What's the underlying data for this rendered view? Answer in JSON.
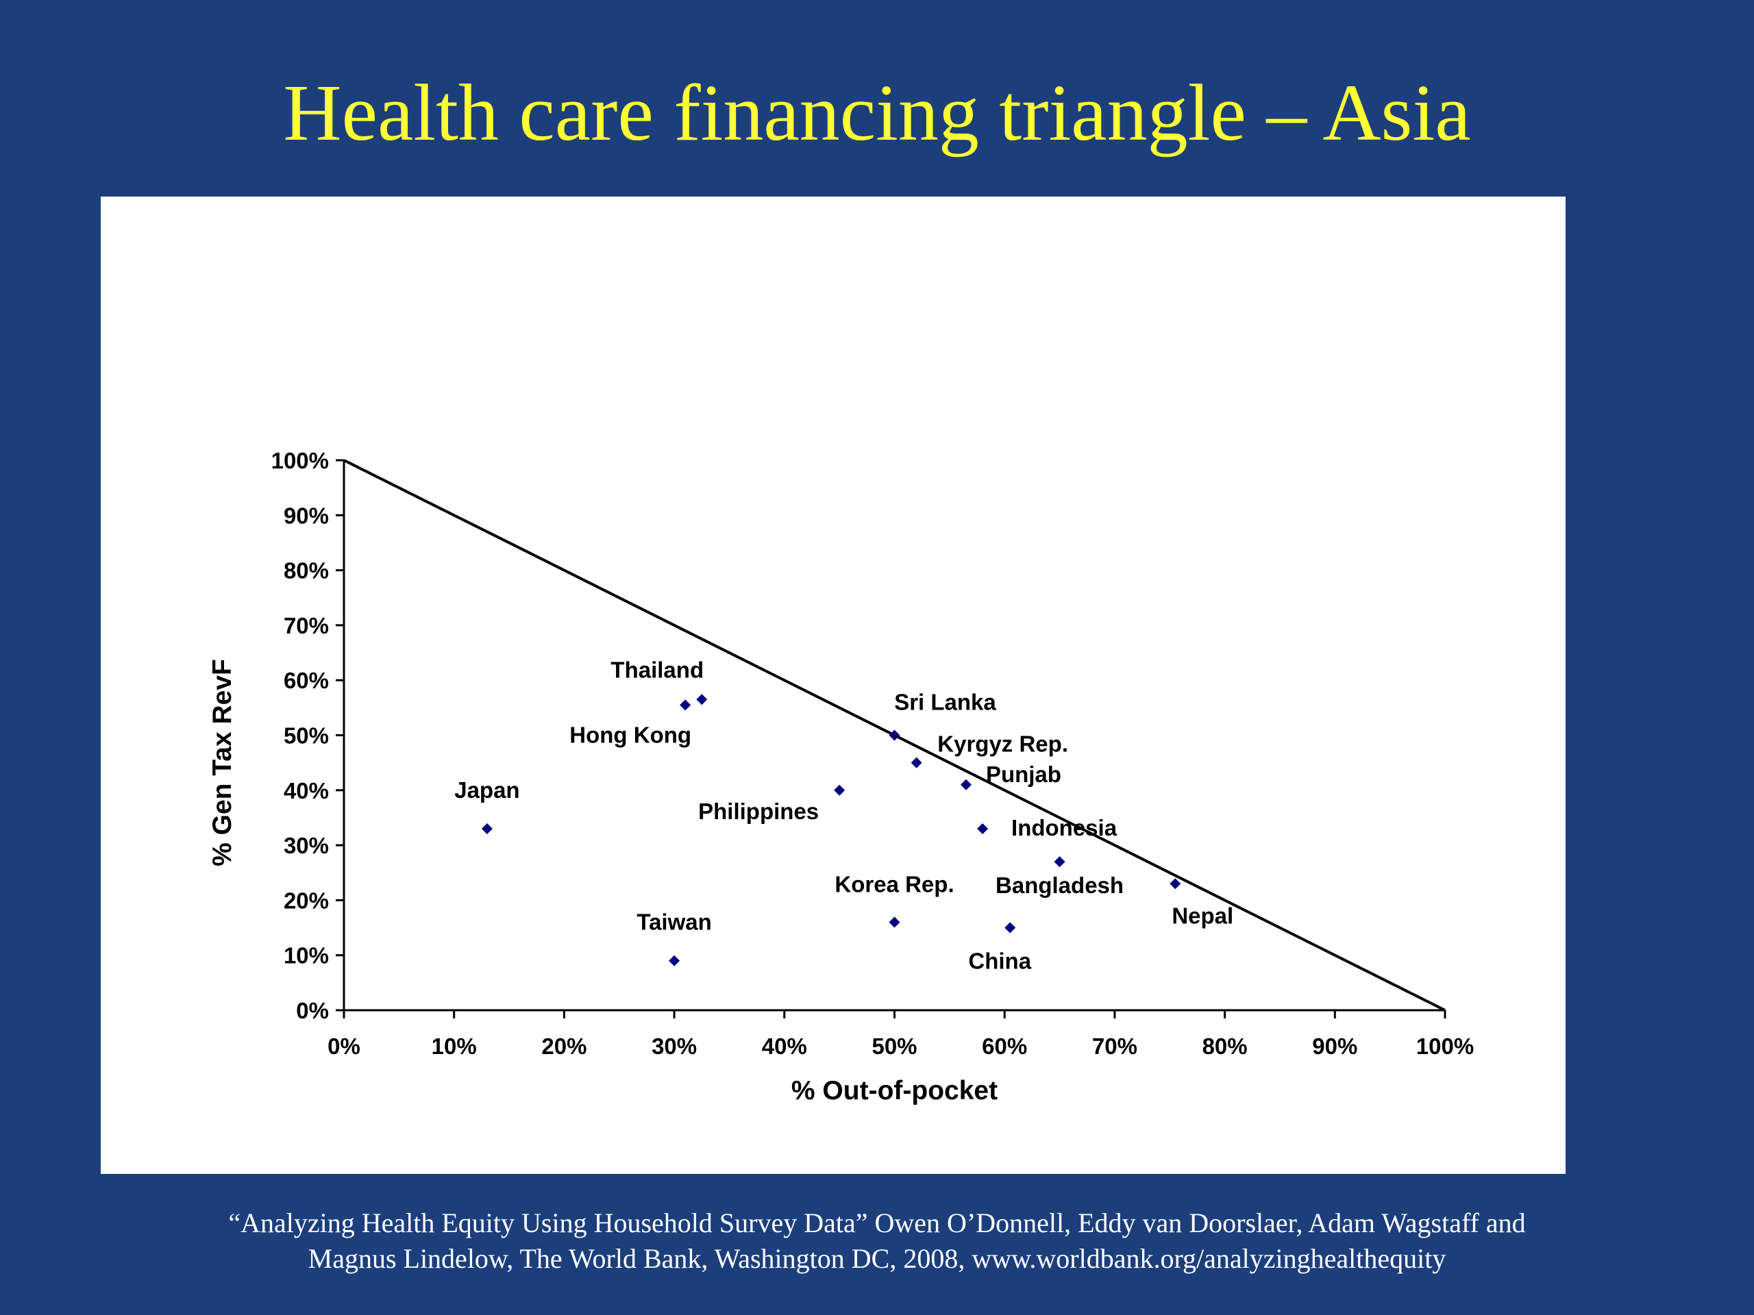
{
  "slide": {
    "title": "Health care financing triangle – Asia",
    "citation_line1": "“Analyzing Health Equity Using Household Survey Data” Owen O’Donnell, Eddy van Doorslaer, Adam Wagstaff and",
    "citation_line2": "Magnus Lindelow, The World Bank, Washington DC, 2008, www.worldbank.org/analyzinghealthequity"
  },
  "colors": {
    "background": "#1c3f7c",
    "title": "#ffff33",
    "marker": "#00007f"
  },
  "chart_data": {
    "type": "scatter",
    "xlabel": "% Out-of-pocket",
    "ylabel": "% Gen Tax RevF",
    "xlim": [
      0,
      1
    ],
    "ylim": [
      0,
      1
    ],
    "x_ticks": [
      "0%",
      "10%",
      "20%",
      "30%",
      "40%",
      "50%",
      "60%",
      "70%",
      "80%",
      "90%",
      "100%"
    ],
    "y_ticks": [
      "0%",
      "10%",
      "20%",
      "30%",
      "40%",
      "50%",
      "60%",
      "70%",
      "80%",
      "90%",
      "100%"
    ],
    "grid": false,
    "reference_line": {
      "x": [
        0,
        1
      ],
      "y": [
        1,
        0
      ]
    },
    "points": [
      {
        "label": "Japan",
        "x": 0.13,
        "y": 0.33
      },
      {
        "label": "Taiwan",
        "x": 0.3,
        "y": 0.09
      },
      {
        "label": "Thailand",
        "x": 0.325,
        "y": 0.565
      },
      {
        "label": "Hong Kong",
        "x": 0.31,
        "y": 0.555
      },
      {
        "label": "Philippines",
        "x": 0.45,
        "y": 0.4
      },
      {
        "label": "Sri Lanka",
        "x": 0.5,
        "y": 0.5
      },
      {
        "label": "Kyrgyz Rep.",
        "x": 0.52,
        "y": 0.45
      },
      {
        "label": "Korea Rep.",
        "x": 0.5,
        "y": 0.16
      },
      {
        "label": "Punjab",
        "x": 0.565,
        "y": 0.41
      },
      {
        "label": "Indonesia",
        "x": 0.58,
        "y": 0.33
      },
      {
        "label": "China",
        "x": 0.605,
        "y": 0.15
      },
      {
        "label": "Bangladesh",
        "x": 0.65,
        "y": 0.27
      },
      {
        "label": "Nepal",
        "x": 0.755,
        "y": 0.23
      }
    ]
  }
}
